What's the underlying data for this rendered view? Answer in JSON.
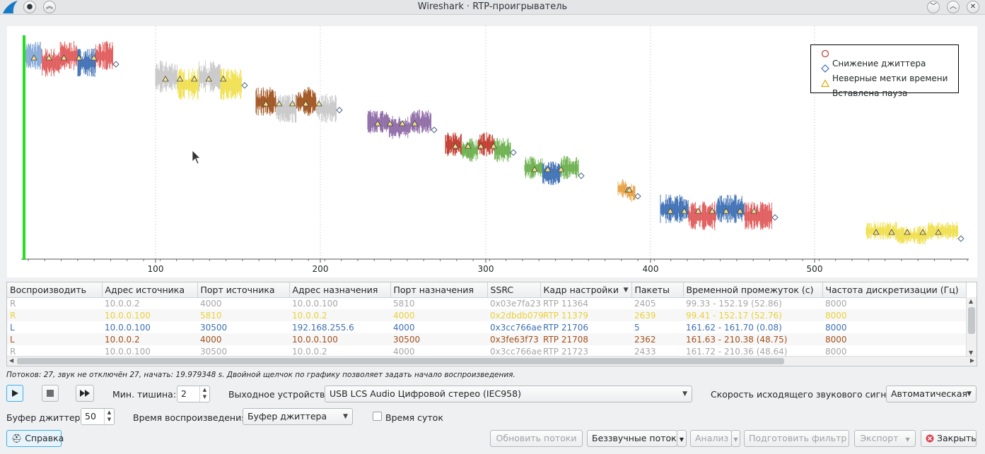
{
  "window": {
    "title": "Wireshark · RTP-проигрыватель"
  },
  "plot": {
    "x_ticks": [
      "100",
      "200",
      "300",
      "400",
      "500"
    ],
    "legend": [
      {
        "label": "Снижение джиттера",
        "color": "#c0392b",
        "icon": "circle"
      },
      {
        "label": "Неверные метки времени",
        "color": "#3d6fb4",
        "icon": "diamond"
      },
      {
        "label": "Вставлена пауза",
        "color": "#e0a800",
        "icon": "triangle"
      }
    ]
  },
  "table": {
    "headers": [
      "Воспроизводить",
      "Адрес источника",
      "Порт источника",
      "Адрес назначения",
      "Порт назначения",
      "SSRC",
      "Кадр настройки",
      "Пакеты",
      "Временной промежуток (с)",
      "Частота дискретизации (Гц)"
    ],
    "rows": [
      {
        "color": "#a6a6a6",
        "cells": [
          "R",
          "10.0.0.2",
          "4000",
          "10.0.0.100",
          "5810",
          "0x03e7fa23",
          "RTP 11364",
          "2405",
          "99.33 - 152.19 (52.86)",
          "8000"
        ]
      },
      {
        "color": "#e8d13a",
        "cells": [
          "R",
          "10.0.0.100",
          "5810",
          "10.0.0.2",
          "4000",
          "0x2dbdb079",
          "RTP 11379",
          "2639",
          "99.41 - 152.17 (52.76)",
          "8000"
        ]
      },
      {
        "color": "#3d6fb4",
        "cells": [
          "L",
          "10.0.0.100",
          "30500",
          "192.168.255.6",
          "4000",
          "0x3cc766ae",
          "RTP 21706",
          "5",
          "161.62 - 161.70 (0.08)",
          "8000"
        ]
      },
      {
        "color": "#a0521d",
        "cells": [
          "L",
          "10.0.0.2",
          "4000",
          "10.0.0.100",
          "30500",
          "0x3fe63f73",
          "RTP 21708",
          "2362",
          "161.63 - 210.38 (48.75)",
          "8000"
        ]
      },
      {
        "color": "#a6a6a6",
        "cells": [
          "R",
          "10.0.0.100",
          "30500",
          "10.0.0.2",
          "4000",
          "0x3cc766ae",
          "RTP 21723",
          "2433",
          "161.72 - 210.36 (48.64)",
          "8000"
        ]
      }
    ]
  },
  "status_text": "Потоков: 27, звук не отключён 27, начать: 19.979348 s. Двойной щелчок по графику позволяет задать начало воспроизведения.",
  "controls": {
    "min_silence_label": "Мин. тишина:",
    "min_silence_value": "2",
    "output_device_label": "Выходное устройство:",
    "output_device_value": "USB LCS Audio Цифровой стерео (IEC958)",
    "out_rate_label": "Скорость исходящего звукового сигнала:",
    "out_rate_value": "Автоматическая",
    "jitter_buffer_label": "Буфер джиттера:",
    "jitter_buffer_value": "50",
    "playback_time_label": "Время воспроизведения:",
    "playback_time_value": "Буфер джиттера",
    "time_of_day_label": "Время суток"
  },
  "buttons": {
    "help": "Справка",
    "refresh": "Обновить потоки",
    "silent": "Беззвучные потоки",
    "analyze": "Анализ",
    "prepare_filter": "Подготовить фильтр",
    "export": "Экспорт",
    "close": "Закрыть"
  }
}
